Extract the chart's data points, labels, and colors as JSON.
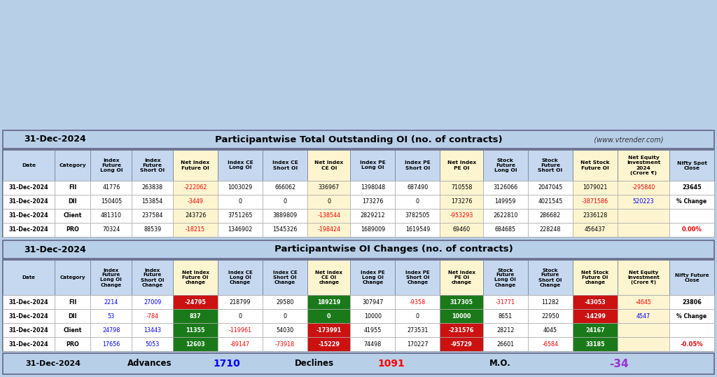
{
  "title1_date": "31-Dec-2024",
  "title1_main": "Participantwise Total Outstanding OI (no. of contracts)",
  "title1_website": "   (www.vtrender.com)",
  "title2_date": "31-Dec-2024",
  "title2_main": "Participantwise OI Changes (no. of contracts)",
  "footer_date": "31-Dec-2024",
  "footer_advances_label": "Advances",
  "footer_advances_value": "1710",
  "footer_declines_label": "Declines",
  "footer_declines_value": "1091",
  "footer_mo_label": "M.O.",
  "footer_mo_value": "-34",
  "table1_headers": [
    "Date",
    "Category",
    "Index\nFuture\nLong OI",
    "Index\nFuture\nShort OI",
    "Net Index\nFuture OI",
    "Index CE\nLong OI",
    "Index CE\nShort OI",
    "Net Index\nCE OI",
    "Index PE\nLong OI",
    "Index PE\nShort OI",
    "Net Index\nPE OI",
    "Stock\nFuture\nLong OI",
    "Stock\nFuture\nShort OI",
    "Net Stock\nFuture OI",
    "Net Equity\nInvestment\n2024\n(Crore ₹)",
    "Nifty Spot\nClose"
  ],
  "table1_rows": [
    [
      "31-Dec-2024",
      "FII",
      "41776",
      "263838",
      "-222062",
      "1003029",
      "666062",
      "336967",
      "1398048",
      "687490",
      "710558",
      "3126066",
      "2047045",
      "1079021",
      "-295840",
      "23645"
    ],
    [
      "31-Dec-2024",
      "DII",
      "150405",
      "153854",
      "-3449",
      "0",
      "0",
      "0",
      "173276",
      "0",
      "173276",
      "149959",
      "4021545",
      "-3871586",
      "520223",
      ""
    ],
    [
      "31-Dec-2024",
      "Client",
      "481310",
      "237584",
      "243726",
      "3751265",
      "3889809",
      "-138544",
      "2829212",
      "3782505",
      "-953293",
      "2622810",
      "286682",
      "2336128",
      "",
      ""
    ],
    [
      "31-Dec-2024",
      "PRO",
      "70324",
      "88539",
      "-18215",
      "1346902",
      "1545326",
      "-198424",
      "1689009",
      "1619549",
      "69460",
      "684685",
      "228248",
      "456437",
      "",
      ""
    ]
  ],
  "table1_cell_colors": {
    "0,4": "red",
    "1,4": "red",
    "2,4": "black",
    "3,4": "red",
    "0,7": "black",
    "1,7": "black",
    "2,7": "red",
    "3,7": "red",
    "0,10": "black",
    "1,10": "black",
    "2,10": "red",
    "3,10": "black",
    "0,13": "black",
    "1,13": "red",
    "2,13": "black",
    "3,13": "black",
    "0,14": "red",
    "1,14": "blue"
  },
  "table2_headers": [
    "Date",
    "Category",
    "Index\nFuture\nLong OI\nChange",
    "Index\nFuture\nShort OI\nChange",
    "Net Index\nFuture OI\nchange",
    "Index CE\nLong OI\nChange",
    "Index CE\nShort OI\nChange",
    "Net Index\nCE OI\nchange",
    "Index PE\nLong OI\nChange",
    "Index PE\nShort OI\nChange",
    "Net Index\nPE OI\nchange",
    "Stock\nFuture\nLong OI\nChange",
    "Stock\nFuture\nShort OI\nChange",
    "Net Stock\nFuture OI\nchange",
    "Net Equity\nInvestment\n(Crore ₹)",
    "Nifty Future\nClose"
  ],
  "table2_rows": [
    [
      "31-Dec-2024",
      "FII",
      "2214",
      "27009",
      "-24795",
      "218799",
      "29580",
      "189219",
      "307947",
      "-9358",
      "317305",
      "-31771",
      "11282",
      "-43053",
      "-4645",
      "23806"
    ],
    [
      "31-Dec-2024",
      "DII",
      "53",
      "-784",
      "837",
      "0",
      "0",
      "0",
      "10000",
      "0",
      "10000",
      "8651",
      "22950",
      "-14299",
      "4547",
      ""
    ],
    [
      "31-Dec-2024",
      "Client",
      "24798",
      "13443",
      "11355",
      "-119961",
      "54030",
      "-173991",
      "41955",
      "273531",
      "-231576",
      "28212",
      "4045",
      "24167",
      "",
      ""
    ],
    [
      "31-Dec-2024",
      "PRO",
      "17656",
      "5053",
      "12603",
      "-89147",
      "-73918",
      "-15229",
      "74498",
      "170227",
      "-95729",
      "26601",
      "-6584",
      "33185",
      "",
      ""
    ]
  ],
  "table2_cell_bg": {
    "0,4": "red",
    "1,4": "green",
    "2,4": "green",
    "3,4": "green",
    "0,7": "green",
    "1,7": "green",
    "2,7": "red",
    "3,7": "red",
    "0,10": "green",
    "1,10": "green",
    "2,10": "red",
    "3,10": "red",
    "0,13": "red",
    "1,13": "red",
    "2,13": "green",
    "3,13": "green"
  },
  "bg_color": "#b8cfe8",
  "header_bg": "#c5d8f0",
  "net_col_bg": "#fdf5d0",
  "title_bg": "#b8cfe8",
  "row_bg": "#ffffff"
}
